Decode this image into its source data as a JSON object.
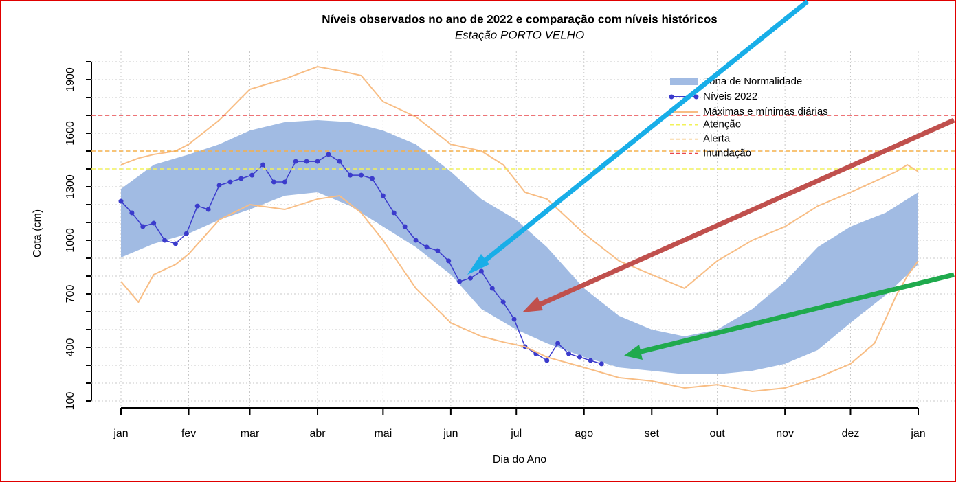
{
  "chart_data": {
    "type": "line",
    "title": "Níveis observados no ano de 2022 e comparação com níveis históricos",
    "subtitle": "Estação PORTO VELHO",
    "x_label": "Dia do Ano",
    "y_label": "Cota (cm)",
    "xlim": [
      0,
      365
    ],
    "ylim": [
      100,
      2000
    ],
    "xticks": [
      {
        "value": 0,
        "label": "jan"
      },
      {
        "value": 31,
        "label": "fev"
      },
      {
        "value": 59,
        "label": "mar"
      },
      {
        "value": 90,
        "label": "abr"
      },
      {
        "value": 120,
        "label": "mai"
      },
      {
        "value": 151,
        "label": "jun"
      },
      {
        "value": 181,
        "label": "jul"
      },
      {
        "value": 212,
        "label": "ago"
      },
      {
        "value": 243,
        "label": "set"
      },
      {
        "value": 273,
        "label": "out"
      },
      {
        "value": 304,
        "label": "nov"
      },
      {
        "value": 334,
        "label": "dez"
      },
      {
        "value": 365,
        "label": "jan"
      }
    ],
    "yticks": [
      100,
      400,
      700,
      1000,
      1300,
      1600,
      1900
    ],
    "yminor_ticks": [
      200,
      300,
      500,
      600,
      800,
      900,
      1100,
      1200,
      1400,
      1500,
      1700,
      1800,
      2000
    ],
    "grid": true,
    "legend": "top-right",
    "series": [
      {
        "name": "Zona de Normalidade",
        "type": "band",
        "color": "#a1bbe3",
        "x": [
          0,
          15,
          31,
          45,
          59,
          75,
          90,
          105,
          120,
          135,
          151,
          165,
          181,
          195,
          212,
          228,
          243,
          258,
          273,
          289,
          304,
          319,
          334,
          350,
          365
        ],
        "upper": [
          1288,
          1423,
          1481,
          1538,
          1615,
          1662,
          1673,
          1662,
          1615,
          1538,
          1385,
          1231,
          1115,
          962,
          731,
          577,
          500,
          462,
          500,
          615,
          769,
          962,
          1077,
          1154,
          1269
        ],
        "lower": [
          904,
          981,
          1038,
          1115,
          1173,
          1250,
          1269,
          1192,
          1077,
          962,
          808,
          615,
          500,
          423,
          346,
          288,
          269,
          250,
          250,
          269,
          308,
          385,
          538,
          692,
          865
        ]
      },
      {
        "name": "Níveis 2022",
        "type": "points-line",
        "color": "#3b3bcc",
        "x": [
          0,
          5,
          10,
          15,
          20,
          25,
          30,
          35,
          40,
          45,
          50,
          55,
          60,
          65,
          70,
          75,
          80,
          85,
          90,
          95,
          100,
          105,
          110,
          115,
          120,
          125,
          130,
          135,
          140,
          145,
          150,
          155,
          160,
          165,
          170,
          175,
          180,
          185,
          190,
          195,
          200,
          205,
          210,
          215,
          220
        ],
        "values": [
          1219,
          1154,
          1077,
          1096,
          1000,
          981,
          1038,
          1192,
          1173,
          1308,
          1327,
          1346,
          1365,
          1423,
          1327,
          1327,
          1442,
          1442,
          1442,
          1481,
          1442,
          1365,
          1365,
          1346,
          1250,
          1154,
          1077,
          1000,
          962,
          942,
          885,
          769,
          788,
          827,
          731,
          654,
          558,
          404,
          365,
          327,
          423,
          365,
          346,
          327,
          308
        ]
      },
      {
        "name": "Máximas e mínimas diárias",
        "type": "maxmin",
        "color": "#f8bd84",
        "x": [
          0,
          8,
          15,
          25,
          31,
          45,
          59,
          75,
          90,
          100,
          110,
          120,
          135,
          151,
          165,
          175,
          185,
          195,
          212,
          228,
          243,
          258,
          273,
          289,
          304,
          319,
          334,
          345,
          355,
          360,
          365
        ],
        "max": [
          1423,
          1460,
          1481,
          1500,
          1538,
          1673,
          1846,
          1904,
          1973,
          1950,
          1923,
          1777,
          1692,
          1538,
          1500,
          1423,
          1269,
          1231,
          1038,
          885,
          808,
          731,
          885,
          1000,
          1077,
          1192,
          1269,
          1330,
          1385,
          1423,
          1385
        ],
        "min": [
          769,
          654,
          808,
          865,
          923,
          1115,
          1200,
          1173,
          1231,
          1250,
          1154,
          1000,
          731,
          538,
          462,
          430,
          404,
          346,
          288,
          231,
          212,
          173,
          192,
          154,
          173,
          231,
          308,
          423,
          692,
          800,
          885
        ]
      }
    ],
    "hlines": [
      {
        "name": "Atenção",
        "value": 1400,
        "color": "#f2f25a"
      },
      {
        "name": "Alerta",
        "value": 1500,
        "color": "#f5b04a"
      },
      {
        "name": "Inundação",
        "value": 1700,
        "color": "#e8474a"
      }
    ]
  }
}
